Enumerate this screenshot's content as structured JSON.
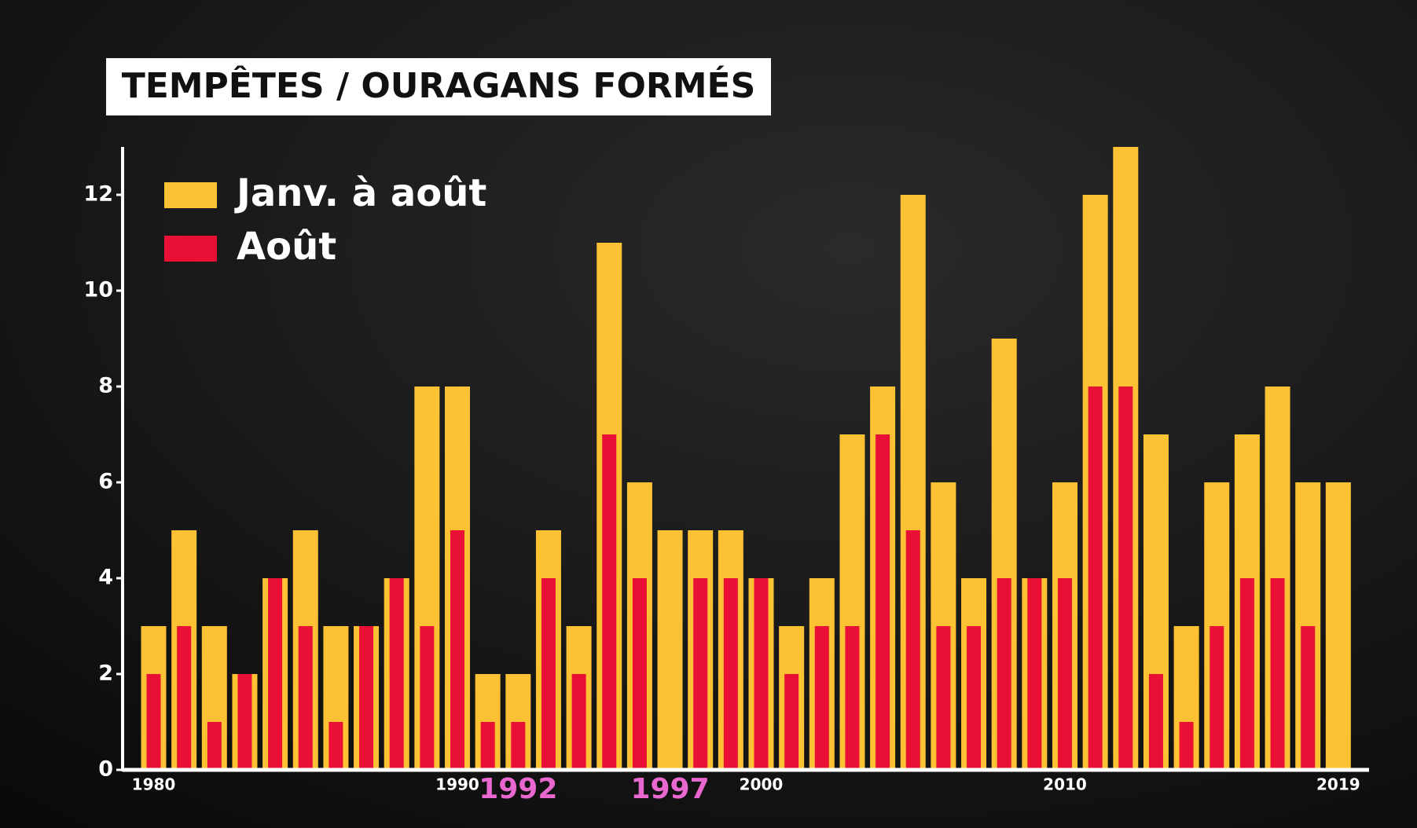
{
  "chart_data": {
    "type": "bar",
    "title": "TEMPÊTES / OURAGANS FORMÉS",
    "categories": [
      "1980",
      null,
      null,
      null,
      null,
      null,
      null,
      null,
      null,
      null,
      "1990",
      null,
      "1992",
      null,
      null,
      null,
      null,
      "1997",
      null,
      null,
      "2000",
      null,
      null,
      null,
      null,
      null,
      null,
      null,
      null,
      null,
      "2010",
      null,
      null,
      null,
      null,
      null,
      null,
      null,
      null,
      "2019"
    ],
    "highlight_indices": [
      12,
      17
    ],
    "highlight_color": "#e868d0",
    "series": [
      {
        "name": "Janv. à août",
        "color": "#fdc134",
        "values": [
          3,
          5,
          3,
          2,
          4,
          5,
          3,
          3,
          4,
          8,
          8,
          2,
          2,
          5,
          3,
          11,
          6,
          5,
          5,
          5,
          4,
          3,
          4,
          7,
          8,
          12,
          6,
          4,
          9,
          4,
          6,
          12,
          13,
          7,
          3,
          6,
          7,
          8,
          6,
          6
        ]
      },
      {
        "name": "Août",
        "color": "#ea0f35",
        "values": [
          2,
          3,
          1,
          2,
          4,
          3,
          1,
          3,
          4,
          3,
          5,
          1,
          1,
          4,
          2,
          7,
          4,
          0,
          4,
          4,
          4,
          2,
          3,
          3,
          7,
          5,
          3,
          3,
          4,
          4,
          4,
          8,
          8,
          2,
          1,
          3,
          4,
          4,
          3,
          0
        ]
      }
    ],
    "ylim": [
      0,
      13
    ],
    "yticks": [
      0,
      2,
      4,
      6,
      8,
      10,
      12
    ],
    "legend": "top-left"
  }
}
